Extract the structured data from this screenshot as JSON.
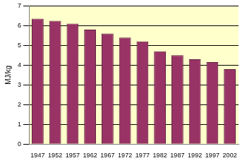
{
  "chart_data": {
    "type": "bar",
    "ylabel": "MJ/kg",
    "categories": [
      "1947",
      "1952",
      "1957",
      "1962",
      "1967",
      "1972",
      "1977",
      "1982",
      "1987",
      "1992",
      "1997",
      "2002"
    ],
    "values": [
      6.35,
      6.25,
      6.1,
      5.8,
      5.6,
      5.4,
      5.2,
      4.7,
      4.5,
      4.3,
      4.15,
      3.8
    ],
    "color": "#993366",
    "ylim": [
      0,
      7
    ],
    "yticks": [
      0,
      1,
      2,
      3,
      4,
      5,
      6,
      7
    ],
    "grid": true
  }
}
